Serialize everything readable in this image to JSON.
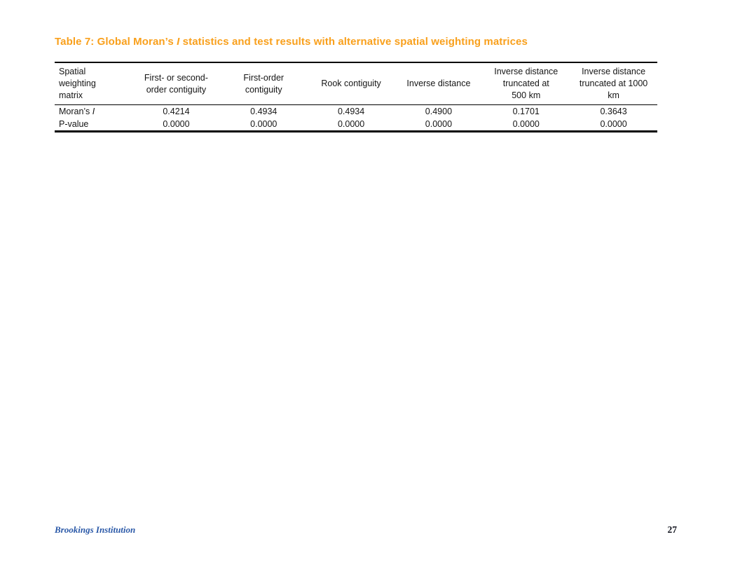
{
  "title": {
    "prefix": "Table 7: Global Moran’s ",
    "italic": "I",
    "suffix": " statistics and test results with alternative spatial weighting matrices"
  },
  "table": {
    "headers": [
      "Spatial\nweighting\nmatrix",
      "First- or second-\norder contiguity",
      "First-order\ncontiguity",
      "Rook contiguity",
      "Inverse distance",
      "Inverse distance\ntruncated at\n500 km",
      "Inverse distance\ntruncated at 1000\nkm"
    ],
    "rows": [
      {
        "label_prefix": "Moran’s ",
        "label_italic": "I",
        "values": [
          "0.4214",
          "0.4934",
          "0.4934",
          "0.4900",
          "0.1701",
          "0.3643"
        ]
      },
      {
        "label_prefix": "P-value",
        "label_italic": "",
        "values": [
          "0.0000",
          "0.0000",
          "0.0000",
          "0.0000",
          "0.0000",
          "0.0000"
        ]
      }
    ]
  },
  "footer": {
    "organization": "Brookings Institution",
    "page_number": "27"
  },
  "colors": {
    "title_orange": "#F9A01C",
    "footer_blue": "#2B59A8",
    "table_text": "#151515"
  }
}
